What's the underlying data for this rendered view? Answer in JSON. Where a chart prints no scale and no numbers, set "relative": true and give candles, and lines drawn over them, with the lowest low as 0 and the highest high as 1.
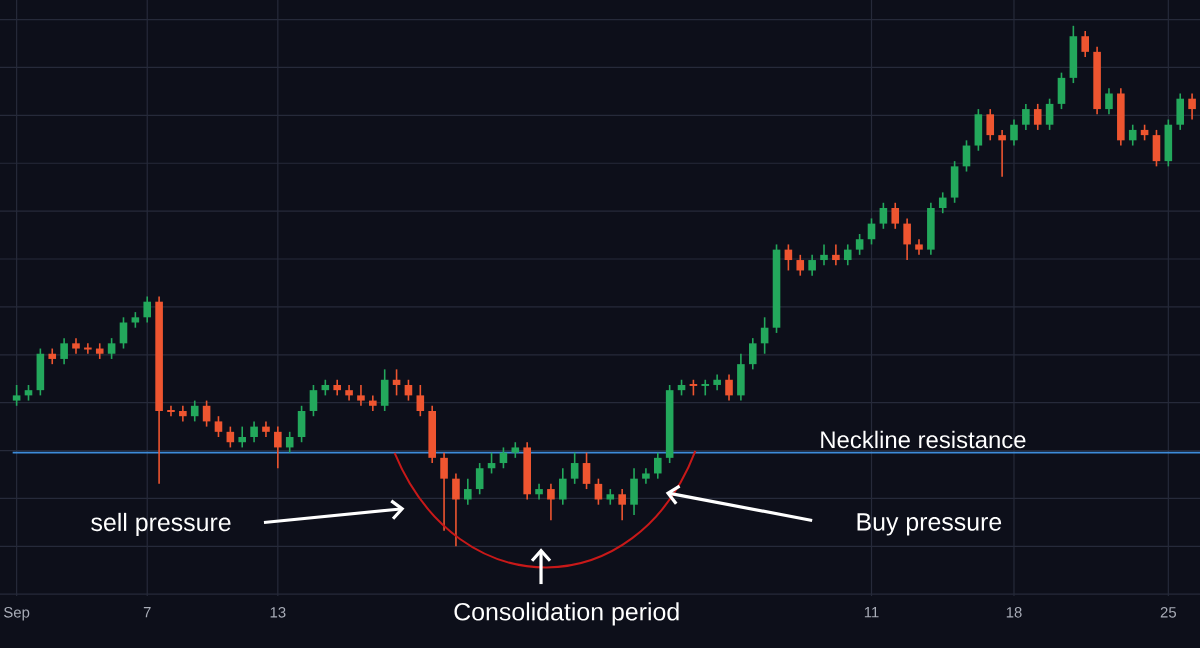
{
  "chart_data": {
    "type": "candlestick",
    "relative": true,
    "grid": true,
    "categories": [
      "Sep",
      null,
      null,
      null,
      null,
      null,
      null,
      null,
      null,
      null,
      null,
      "7",
      null,
      null,
      null,
      null,
      null,
      null,
      null,
      null,
      null,
      null,
      "13",
      null,
      null,
      null,
      null,
      null,
      null,
      null,
      null,
      null,
      null,
      null,
      null,
      null,
      null,
      null,
      null,
      null,
      null,
      null,
      null,
      null,
      null,
      null,
      null,
      null,
      null,
      null,
      null,
      null,
      null,
      null,
      null,
      null,
      null,
      null,
      null,
      null,
      null,
      null,
      null,
      null,
      null,
      null,
      null,
      null,
      null,
      null,
      null,
      null,
      "11",
      null,
      null,
      null,
      null,
      null,
      null,
      null,
      null,
      null,
      null,
      null,
      "18",
      null,
      null,
      null,
      null,
      null,
      null,
      null,
      null,
      null,
      null,
      null,
      null,
      "25",
      null,
      null
    ],
    "ohlc": [
      [
        0.28,
        0.31,
        0.27,
        0.29
      ],
      [
        0.29,
        0.31,
        0.28,
        0.3
      ],
      [
        0.3,
        0.38,
        0.29,
        0.37
      ],
      [
        0.37,
        0.38,
        0.35,
        0.36
      ],
      [
        0.36,
        0.4,
        0.35,
        0.39
      ],
      [
        0.39,
        0.4,
        0.37,
        0.38
      ],
      [
        0.38,
        0.39,
        0.37,
        0.38
      ],
      [
        0.38,
        0.39,
        0.36,
        0.37
      ],
      [
        0.37,
        0.4,
        0.36,
        0.39
      ],
      [
        0.39,
        0.44,
        0.38,
        0.43
      ],
      [
        0.43,
        0.45,
        0.42,
        0.44
      ],
      [
        0.44,
        0.48,
        0.43,
        0.47
      ],
      [
        0.47,
        0.48,
        0.12,
        0.26
      ],
      [
        0.26,
        0.27,
        0.25,
        0.26
      ],
      [
        0.26,
        0.27,
        0.24,
        0.25
      ],
      [
        0.25,
        0.28,
        0.24,
        0.27
      ],
      [
        0.27,
        0.28,
        0.23,
        0.24
      ],
      [
        0.24,
        0.25,
        0.21,
        0.22
      ],
      [
        0.22,
        0.23,
        0.19,
        0.2
      ],
      [
        0.2,
        0.23,
        0.19,
        0.21
      ],
      [
        0.21,
        0.24,
        0.2,
        0.23
      ],
      [
        0.23,
        0.24,
        0.21,
        0.22
      ],
      [
        0.22,
        0.23,
        0.15,
        0.19
      ],
      [
        0.19,
        0.22,
        0.18,
        0.21
      ],
      [
        0.21,
        0.27,
        0.2,
        0.26
      ],
      [
        0.26,
        0.31,
        0.25,
        0.3
      ],
      [
        0.3,
        0.32,
        0.29,
        0.31
      ],
      [
        0.31,
        0.32,
        0.29,
        0.3
      ],
      [
        0.3,
        0.31,
        0.28,
        0.29
      ],
      [
        0.29,
        0.31,
        0.27,
        0.28
      ],
      [
        0.28,
        0.29,
        0.26,
        0.27
      ],
      [
        0.27,
        0.34,
        0.26,
        0.32
      ],
      [
        0.32,
        0.34,
        0.29,
        0.31
      ],
      [
        0.31,
        0.32,
        0.28,
        0.29
      ],
      [
        0.29,
        0.31,
        0.25,
        0.26
      ],
      [
        0.26,
        0.27,
        0.16,
        0.17
      ],
      [
        0.17,
        0.18,
        0.03,
        0.13
      ],
      [
        0.13,
        0.14,
        0,
        0.09
      ],
      [
        0.09,
        0.13,
        0.08,
        0.11
      ],
      [
        0.11,
        0.16,
        0.1,
        0.15
      ],
      [
        0.15,
        0.18,
        0.14,
        0.16
      ],
      [
        0.16,
        0.19,
        0.15,
        0.18
      ],
      [
        0.18,
        0.2,
        0.17,
        0.19
      ],
      [
        0.19,
        0.2,
        0.09,
        0.1
      ],
      [
        0.1,
        0.12,
        0.09,
        0.11
      ],
      [
        0.11,
        0.12,
        0.05,
        0.09
      ],
      [
        0.09,
        0.15,
        0.08,
        0.13
      ],
      [
        0.13,
        0.18,
        0.12,
        0.16
      ],
      [
        0.16,
        0.18,
        0.11,
        0.12
      ],
      [
        0.12,
        0.13,
        0.08,
        0.09
      ],
      [
        0.09,
        0.11,
        0.08,
        0.1
      ],
      [
        0.1,
        0.11,
        0.05,
        0.08
      ],
      [
        0.08,
        0.15,
        0.06,
        0.13
      ],
      [
        0.13,
        0.15,
        0.12,
        0.14
      ],
      [
        0.14,
        0.18,
        0.13,
        0.17
      ],
      [
        0.17,
        0.31,
        0.16,
        0.3
      ],
      [
        0.3,
        0.32,
        0.29,
        0.31
      ],
      [
        0.31,
        0.32,
        0.29,
        0.31
      ],
      [
        0.31,
        0.32,
        0.29,
        0.31
      ],
      [
        0.31,
        0.33,
        0.3,
        0.32
      ],
      [
        0.32,
        0.33,
        0.28,
        0.29
      ],
      [
        0.29,
        0.37,
        0.28,
        0.35
      ],
      [
        0.35,
        0.4,
        0.34,
        0.39
      ],
      [
        0.39,
        0.44,
        0.37,
        0.42
      ],
      [
        0.42,
        0.58,
        0.41,
        0.57
      ],
      [
        0.57,
        0.58,
        0.53,
        0.55
      ],
      [
        0.55,
        0.56,
        0.52,
        0.53
      ],
      [
        0.53,
        0.56,
        0.52,
        0.55
      ],
      [
        0.55,
        0.58,
        0.54,
        0.56
      ],
      [
        0.56,
        0.58,
        0.54,
        0.55
      ],
      [
        0.55,
        0.58,
        0.54,
        0.57
      ],
      [
        0.57,
        0.6,
        0.56,
        0.59
      ],
      [
        0.59,
        0.63,
        0.58,
        0.62
      ],
      [
        0.62,
        0.66,
        0.61,
        0.65
      ],
      [
        0.65,
        0.66,
        0.61,
        0.62
      ],
      [
        0.62,
        0.63,
        0.55,
        0.58
      ],
      [
        0.58,
        0.59,
        0.56,
        0.57
      ],
      [
        0.57,
        0.66,
        0.56,
        0.65
      ],
      [
        0.65,
        0.68,
        0.64,
        0.67
      ],
      [
        0.67,
        0.74,
        0.66,
        0.73
      ],
      [
        0.73,
        0.78,
        0.72,
        0.77
      ],
      [
        0.77,
        0.84,
        0.76,
        0.83
      ],
      [
        0.83,
        0.84,
        0.78,
        0.79
      ],
      [
        0.79,
        0.8,
        0.71,
        0.78
      ],
      [
        0.78,
        0.82,
        0.77,
        0.81
      ],
      [
        0.81,
        0.85,
        0.8,
        0.84
      ],
      [
        0.84,
        0.85,
        0.8,
        0.81
      ],
      [
        0.81,
        0.86,
        0.8,
        0.85
      ],
      [
        0.85,
        0.91,
        0.84,
        0.9
      ],
      [
        0.9,
        1,
        0.89,
        0.98
      ],
      [
        0.98,
        0.99,
        0.94,
        0.95
      ],
      [
        0.95,
        0.96,
        0.83,
        0.84
      ],
      [
        0.84,
        0.88,
        0.83,
        0.87
      ],
      [
        0.87,
        0.88,
        0.77,
        0.78
      ],
      [
        0.78,
        0.81,
        0.77,
        0.8
      ],
      [
        0.8,
        0.81,
        0.78,
        0.79
      ],
      [
        0.79,
        0.8,
        0.73,
        0.74
      ],
      [
        0.74,
        0.82,
        0.73,
        0.81
      ],
      [
        0.81,
        0.87,
        0.8,
        0.86
      ],
      [
        0.86,
        0.87,
        0.82,
        0.84
      ]
    ],
    "colors": [
      "#23a85c",
      "#23a85c",
      "#23a85c",
      "#ee5530",
      "#23a85c",
      "#ee5530",
      "#ee5530",
      "#ee5530",
      "#23a85c",
      "#23a85c",
      "#23a85c",
      "#23a85c",
      "#ee5530",
      "#ee5530",
      "#ee5530",
      "#23a85c",
      "#ee5530",
      "#ee5530",
      "#ee5530",
      "#23a85c",
      "#23a85c",
      "#ee5530",
      "#ee5530",
      "#23a85c",
      "#23a85c",
      "#23a85c",
      "#23a85c",
      "#ee5530",
      "#ee5530",
      "#ee5530",
      "#ee5530",
      "#23a85c",
      "#ee5530",
      "#ee5530",
      "#ee5530",
      "#ee5530",
      "#ee5530",
      "#ee5530",
      "#23a85c",
      "#23a85c",
      "#23a85c",
      "#23a85c",
      "#23a85c",
      "#ee5530",
      "#23a85c",
      "#ee5530",
      "#23a85c",
      "#23a85c",
      "#ee5530",
      "#ee5530",
      "#23a85c",
      "#ee5530",
      "#23a85c",
      "#23a85c",
      "#23a85c",
      "#23a85c",
      "#23a85c",
      "#ee5530",
      "#23a85c",
      "#23a85c",
      "#ee5530",
      "#23a85c",
      "#23a85c",
      "#23a85c",
      "#23a85c",
      "#ee5530",
      "#ee5530",
      "#23a85c",
      "#23a85c",
      "#ee5530",
      "#23a85c",
      "#23a85c",
      "#23a85c",
      "#23a85c",
      "#ee5530",
      "#ee5530",
      "#ee5530",
      "#23a85c",
      "#23a85c",
      "#23a85c",
      "#23a85c",
      "#23a85c",
      "#ee5530",
      "#ee5530",
      "#23a85c",
      "#23a85c",
      "#ee5530",
      "#23a85c",
      "#23a85c",
      "#23a85c",
      "#ee5530",
      "#ee5530",
      "#23a85c",
      "#ee5530",
      "#23a85c",
      "#ee5530",
      "#ee5530",
      "#23a85c",
      "#23a85c",
      "#ee5530"
    ],
    "ref_lines": [
      {
        "axis": "y",
        "value": 0.18,
        "label": "Neckline resistance",
        "color": "#3d8bd9"
      }
    ],
    "annotations": [
      "sell pressure",
      "Buy pressure",
      "Consolidation period"
    ]
  }
}
